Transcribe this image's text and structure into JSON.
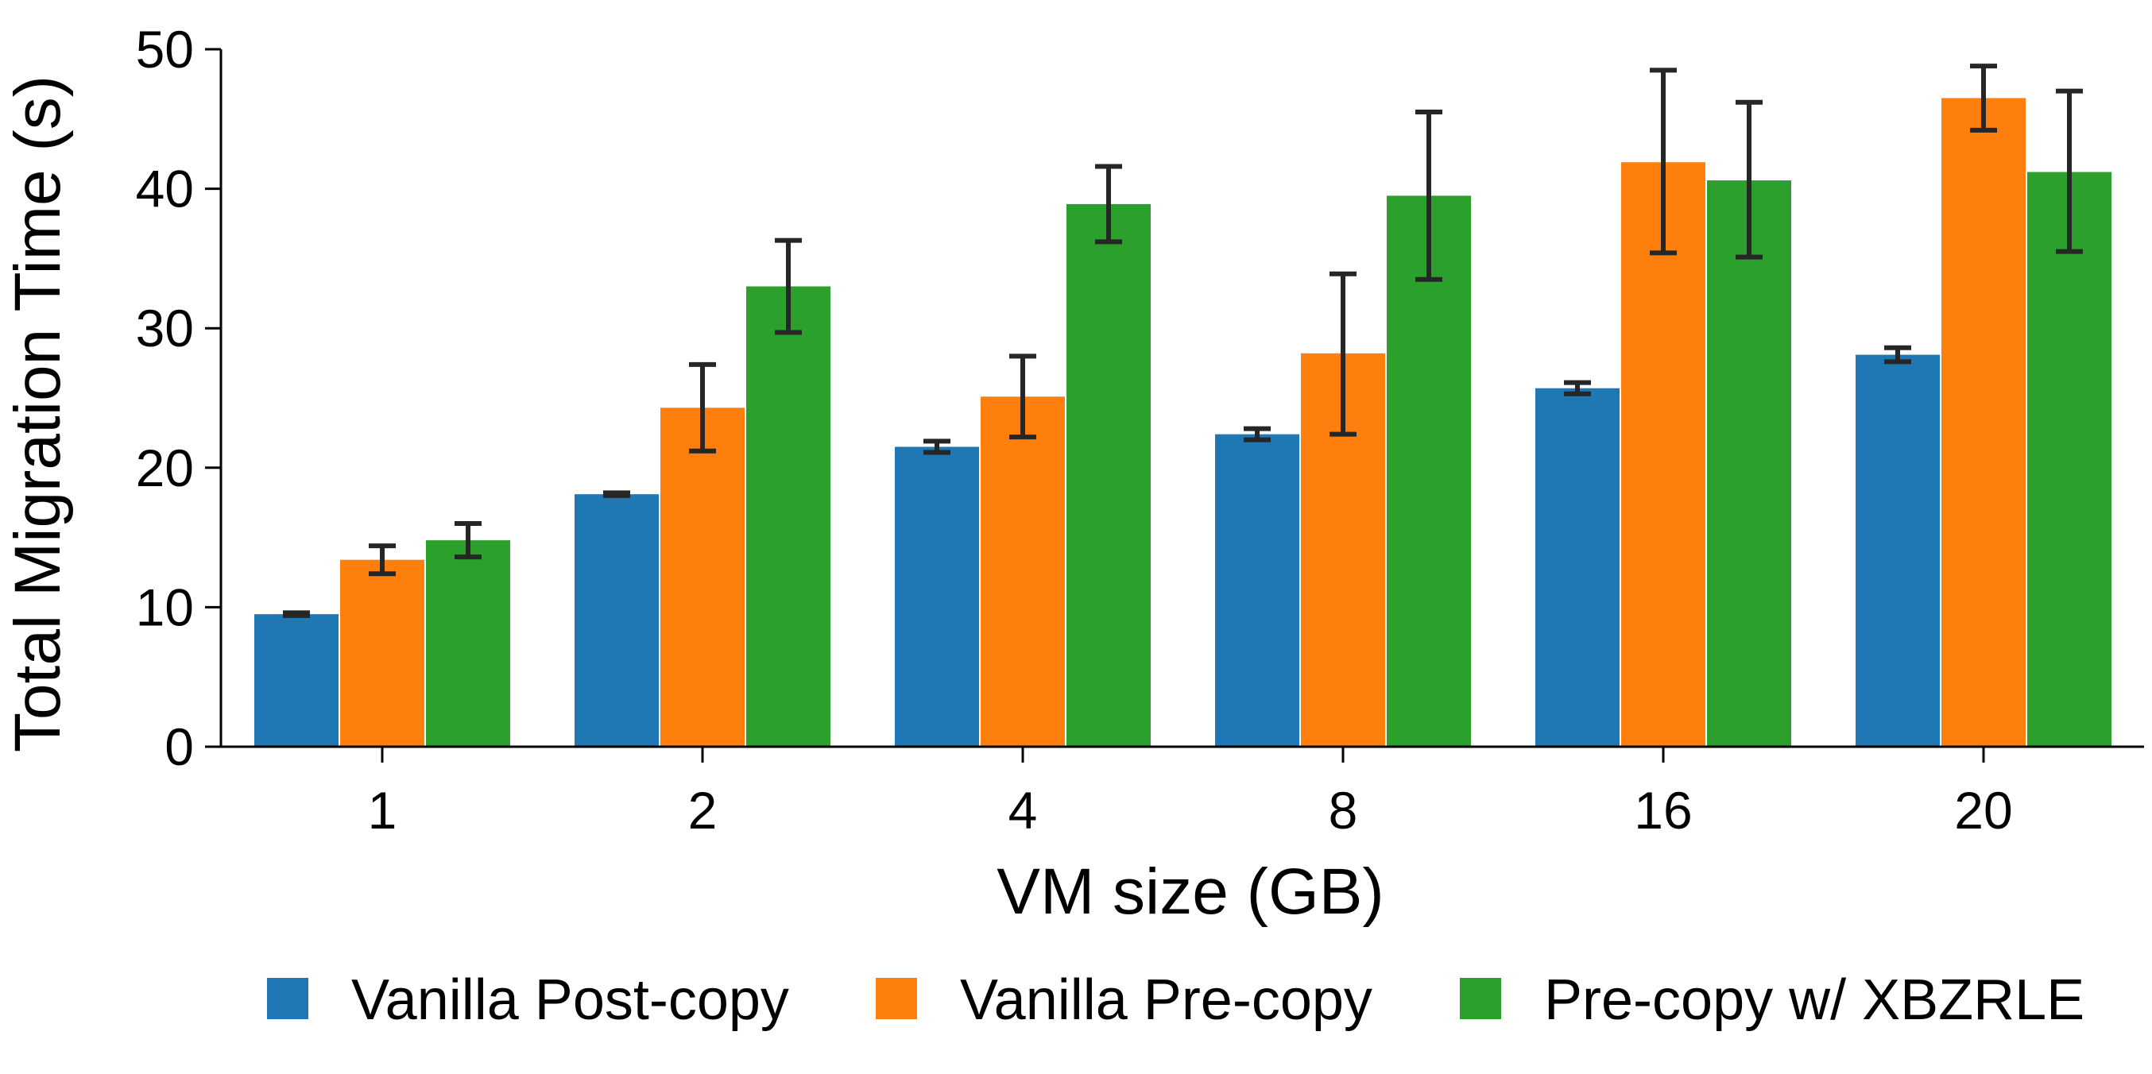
{
  "chart_data": {
    "type": "bar",
    "title": "",
    "xlabel": "VM size (GB)",
    "ylabel": "Total Migration Time (s)",
    "categories": [
      "1",
      "2",
      "4",
      "8",
      "16",
      "20"
    ],
    "ylim": [
      0,
      50
    ],
    "yticks": [
      "0",
      "10",
      "20",
      "30",
      "40",
      "50"
    ],
    "grid": false,
    "legend_position": "bottom",
    "series": [
      {
        "name": "Vanilla Post-copy",
        "color": "#1f77b4",
        "values": [
          9.5,
          18.1,
          21.5,
          22.4,
          25.7,
          28.1
        ],
        "error_low": [
          9.4,
          18.0,
          21.1,
          22.0,
          25.3,
          27.6
        ],
        "error_high": [
          9.6,
          18.2,
          21.9,
          22.8,
          26.1,
          28.6
        ]
      },
      {
        "name": "Vanilla Pre-copy",
        "color": "#ff7f0e",
        "values": [
          13.4,
          24.3,
          25.1,
          28.2,
          41.9,
          46.5
        ],
        "error_low": [
          12.4,
          21.2,
          22.2,
          22.4,
          35.4,
          44.2
        ],
        "error_high": [
          14.4,
          27.4,
          28.0,
          33.9,
          48.5,
          48.8
        ]
      },
      {
        "name": "Pre-copy w/ XBZRLE",
        "color": "#2ca02c",
        "values": [
          14.8,
          33.0,
          38.9,
          39.5,
          40.6,
          41.2
        ],
        "error_low": [
          13.6,
          29.7,
          36.2,
          33.5,
          35.1,
          35.5
        ],
        "error_high": [
          16.0,
          36.3,
          41.6,
          45.5,
          46.2,
          47.0
        ]
      }
    ]
  }
}
